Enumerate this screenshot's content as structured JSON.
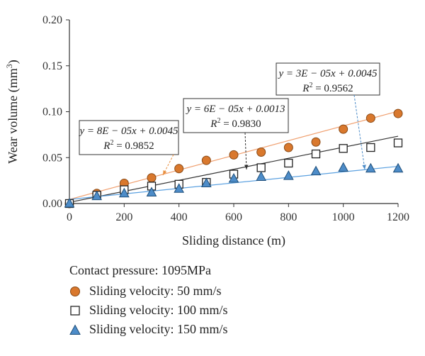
{
  "chart_data": {
    "type": "scatter",
    "xlabel": "Sliding distance (m)",
    "ylabel": "Wear volume (mm",
    "ylabel_sup": "3",
    "ylabel_end": ")",
    "xlim": [
      0,
      1200
    ],
    "ylim": [
      0,
      0.2
    ],
    "xticks": [
      "0",
      "200",
      "400",
      "600",
      "800",
      "1000",
      "1200"
    ],
    "xtick_values": [
      0,
      200,
      400,
      600,
      800,
      1000,
      1200
    ],
    "yticks": [
      "0.00",
      "0.05",
      "0.10",
      "0.15",
      "0.20"
    ],
    "ytick_values": [
      0,
      0.05,
      0.1,
      0.15,
      0.2
    ],
    "grid": false,
    "x": [
      0,
      100,
      200,
      300,
      400,
      500,
      600,
      700,
      800,
      900,
      1000,
      1100,
      1200
    ],
    "series": [
      {
        "legend_label": "Sliding velocity: 50 mm/s",
        "marker": "circle",
        "color": "#d9782d",
        "stroke": "#8a4a16",
        "line_color": "#f0a070",
        "values": [
          0.0,
          0.011,
          0.022,
          0.028,
          0.038,
          0.047,
          0.053,
          0.056,
          0.061,
          0.067,
          0.081,
          0.093,
          0.098
        ],
        "fit": {
          "slope": 8e-05,
          "intercept": 0.0045
        },
        "equation": "y = 8E − 05x + 0.0045",
        "r2_label": "R",
        "r2_sup": "2",
        "r2_value": " = 0.9852"
      },
      {
        "legend_label": "Sliding velocity: 100 mm/s",
        "marker": "square",
        "color": "#ffffff",
        "stroke": "#222222",
        "line_color": "#333333",
        "values": [
          0.0,
          0.009,
          0.015,
          0.019,
          0.021,
          0.023,
          0.032,
          0.039,
          0.044,
          0.054,
          0.06,
          0.061,
          0.066
        ],
        "fit": {
          "slope": 6e-05,
          "intercept": 0.0013
        },
        "equation": "y = 6E − 05x + 0.0013",
        "r2_label": "R",
        "r2_sup": "2",
        "r2_value": " = 0.9830"
      },
      {
        "legend_label": "Sliding velocity: 150 mm/s",
        "marker": "triangle",
        "color": "#4d8cc8",
        "stroke": "#1f4f7a",
        "line_color": "#5aa0e0",
        "values": [
          0.0,
          0.008,
          0.011,
          0.012,
          0.016,
          0.022,
          0.027,
          0.029,
          0.03,
          0.035,
          0.039,
          0.038,
          0.038
        ],
        "fit": {
          "slope": 3e-05,
          "intercept": 0.0045
        },
        "equation": "y = 3E − 05x + 0.0045",
        "r2_label": "R",
        "r2_sup": "2",
        "r2_value": " = 0.9562"
      }
    ]
  },
  "legend": {
    "title": "Contact pressure: 1095MPa",
    "items": [
      "Sliding velocity: 50 mm/s",
      "Sliding velocity: 100 mm/s",
      "Sliding velocity: 150 mm/s"
    ]
  }
}
